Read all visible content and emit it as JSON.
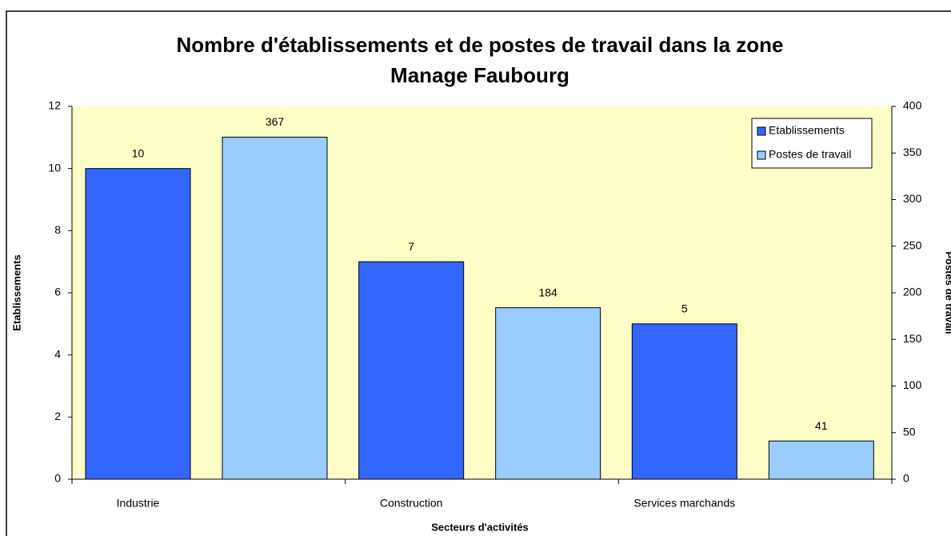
{
  "chart_data": {
    "type": "bar",
    "title": [
      "Nombre d'établissements et de postes de travail dans la zone",
      "Manage Faubourg"
    ],
    "x_label": "Secteurs d'activités",
    "y_label": "Etablissements",
    "y2_label": "Postes de travail",
    "categories": [
      "Industrie",
      "Construction",
      "Services marchands"
    ],
    "series": [
      {
        "name": "Etablissements",
        "color": "#3366ff",
        "values": [
          10,
          7,
          5
        ]
      },
      {
        "name": "Postes de travail",
        "color": "#99ccff",
        "values": [
          367,
          184,
          41
        ],
        "axis": "y2"
      }
    ],
    "ylim": [
      0,
      12
    ],
    "yticks": [
      0,
      2,
      4,
      6,
      8,
      10,
      12
    ],
    "y2lim": [
      0,
      400
    ],
    "y2ticks": [
      0,
      50,
      100,
      150,
      200,
      250,
      300,
      350,
      400
    ],
    "legend": "upper right",
    "grid": false,
    "plot_background": "#ffffc8"
  }
}
